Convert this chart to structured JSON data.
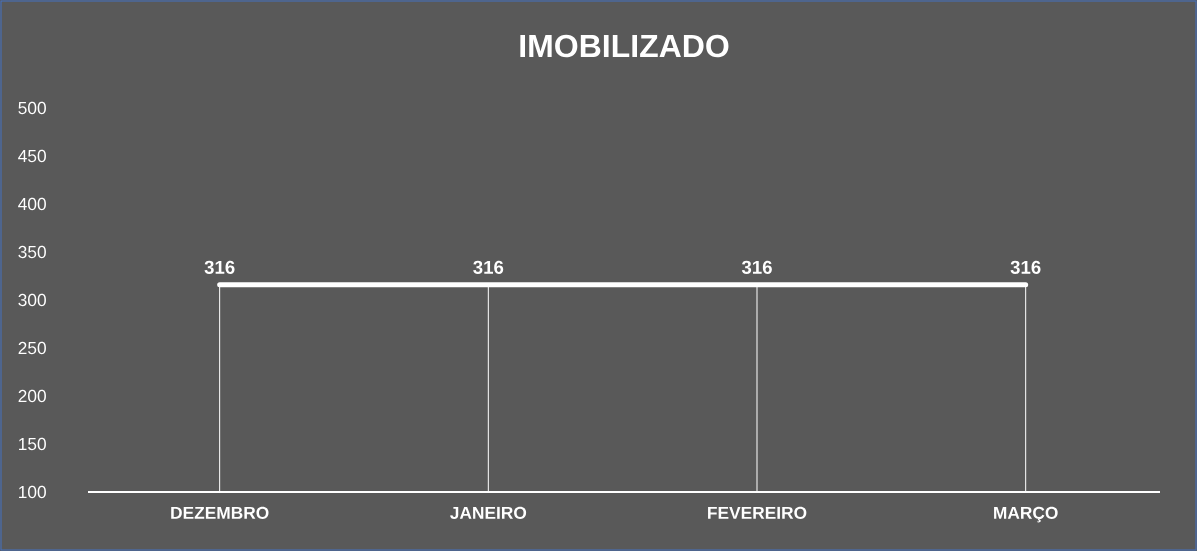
{
  "chart_data": {
    "type": "line",
    "title": "IMOBILIZADO",
    "categories": [
      "DEZEMBRO",
      "JANEIRO",
      "FEVEREIRO",
      "MARÇO"
    ],
    "values": [
      316,
      316,
      316,
      316
    ],
    "color": "#ffffff",
    "ylim": [
      100,
      500
    ],
    "yticks": [
      100,
      150,
      200,
      250,
      300,
      350,
      400,
      450,
      500
    ],
    "data_labels": true,
    "grid": false,
    "marker": "none",
    "line_style": "solid"
  }
}
